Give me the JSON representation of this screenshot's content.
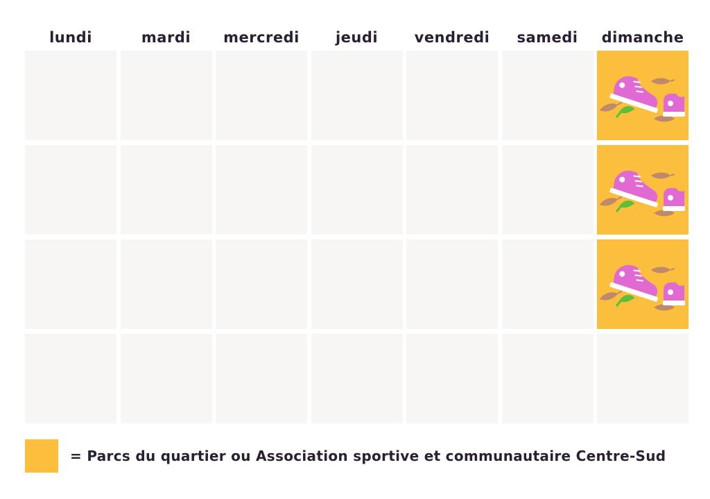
{
  "calendar": {
    "days": [
      "lundi",
      "mardi",
      "mercredi",
      "jeudi",
      "vendredi",
      "samedi",
      "dimanche"
    ],
    "rows": [
      [
        false,
        false,
        false,
        false,
        false,
        false,
        true
      ],
      [
        false,
        false,
        false,
        false,
        false,
        false,
        true
      ],
      [
        false,
        false,
        false,
        false,
        false,
        false,
        true
      ],
      [
        false,
        false,
        false,
        false,
        false,
        false,
        false
      ]
    ],
    "activity_icon": "sneakers-leaves-icon"
  },
  "legend": {
    "text": "= Parcs du quartier ou Association sportive et communautaire Centre-Sud"
  },
  "colors": {
    "highlight": "#fcbf3d",
    "empty_cell": "#f7f6f4",
    "text": "#2b1f33",
    "sneaker": "#e06ad1",
    "leaf_brown": "#c08a6a",
    "leaf_green": "#5bbf3a"
  }
}
